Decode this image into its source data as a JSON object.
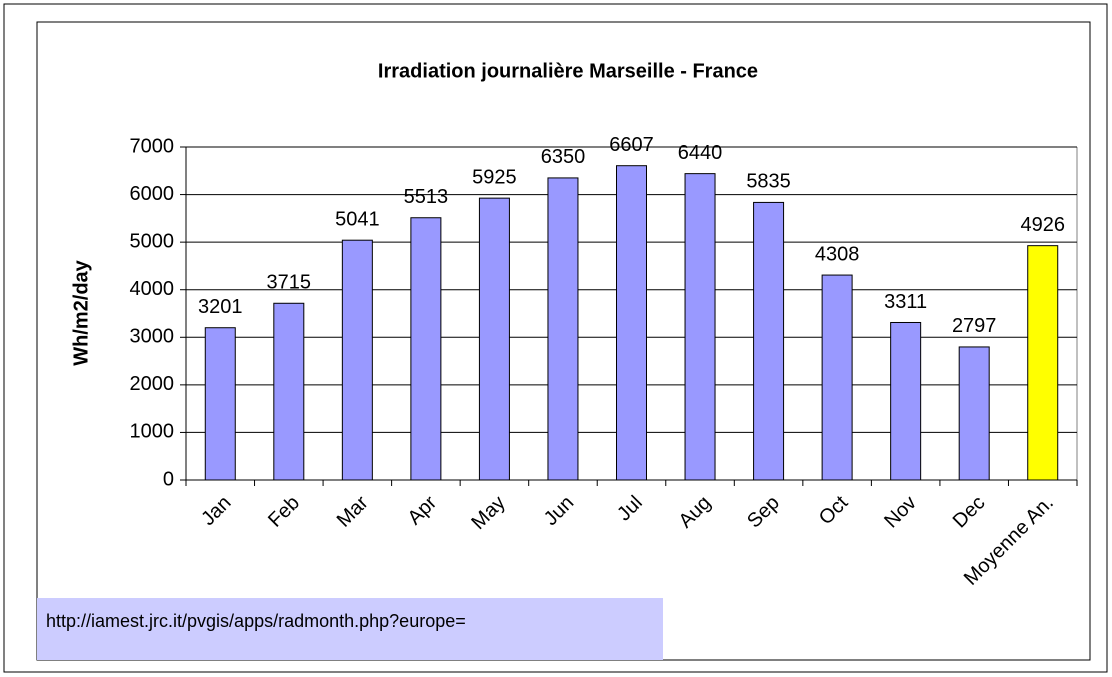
{
  "chart_data": {
    "type": "bar",
    "title": "Irradiation journalière Marseille - France",
    "y_label": "Wh/m2/day",
    "categories": [
      "Jan",
      "Feb",
      "Mar",
      "Apr",
      "May",
      "Jun",
      "Jul",
      "Aug",
      "Sep",
      "Oct",
      "Nov",
      "Dec",
      "Moyenne An."
    ],
    "values": [
      3201,
      3715,
      5041,
      5513,
      5925,
      6350,
      6607,
      6440,
      5835,
      4308,
      3311,
      2797,
      4926
    ],
    "colors": [
      "#9999ff",
      "#9999ff",
      "#9999ff",
      "#9999ff",
      "#9999ff",
      "#9999ff",
      "#9999ff",
      "#9999ff",
      "#9999ff",
      "#9999ff",
      "#9999ff",
      "#9999ff",
      "#ffff00"
    ],
    "ylim": [
      0,
      7000
    ],
    "yticks": [
      0,
      1000,
      2000,
      3000,
      4000,
      5000,
      6000,
      7000
    ],
    "grid": true,
    "source_note": "http://iamest.jrc.it/pvgis/apps/radmonth.php?europe="
  }
}
